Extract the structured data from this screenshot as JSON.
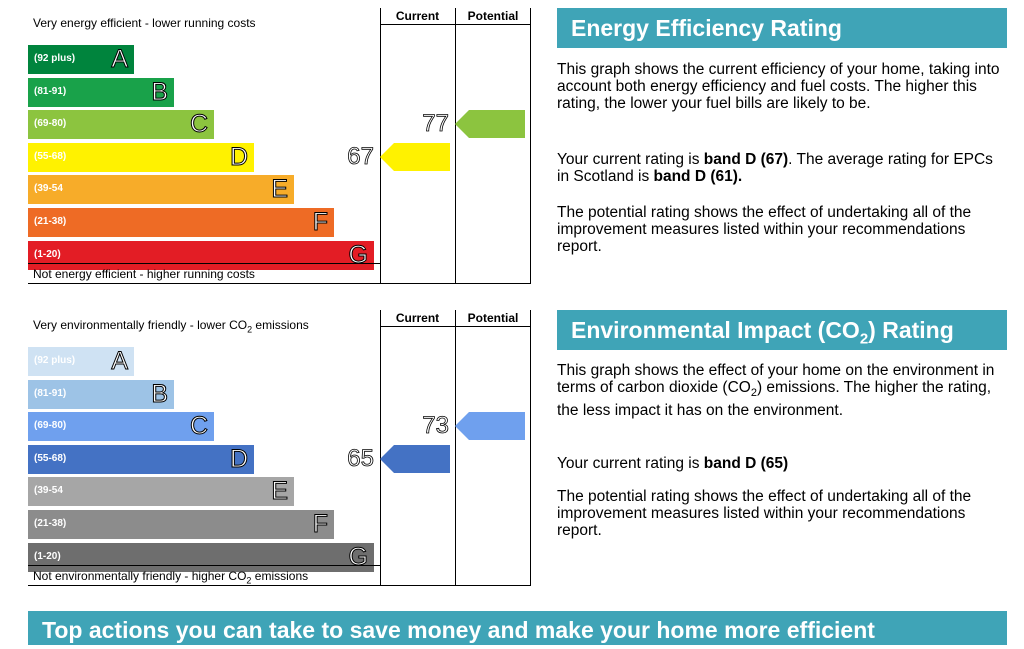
{
  "energy_chart": {
    "header_current": "Current",
    "header_potential": "Potential",
    "top_caption": "Very energy efficient - lower running costs",
    "bottom_caption": "Not energy efficient - higher running costs",
    "bands": [
      {
        "range": "(92 plus)",
        "letter": "A",
        "color": "#00843d"
      },
      {
        "range": "(81-91)",
        "letter": "B",
        "color": "#19a24a"
      },
      {
        "range": "(69-80)",
        "letter": "C",
        "color": "#8cc43f"
      },
      {
        "range": "(55-68)",
        "letter": "D",
        "color": "#fff200"
      },
      {
        "range": "(39-54",
        "letter": "E",
        "color": "#f7ac29"
      },
      {
        "range": "(21-38)",
        "letter": "F",
        "color": "#ee6b25"
      },
      {
        "range": "(1-20)",
        "letter": "G",
        "color": "#e31d25"
      }
    ],
    "current": {
      "value": "67",
      "color": "#fff200"
    },
    "potential": {
      "value": "77",
      "color": "#8cc43f"
    }
  },
  "co2_chart": {
    "header_current": "Current",
    "header_potential": "Potential",
    "top_caption": "Very environmentally friendly - lower CO",
    "top_caption_sub": "2",
    "top_caption_end": " emissions",
    "bottom_caption": "Not environmentally friendly - higher CO",
    "bottom_caption_sub": "2",
    "bottom_caption_end": " emissions",
    "bands": [
      {
        "range": "(92 plus)",
        "letter": "A",
        "color": "#cfe2f3"
      },
      {
        "range": "(81-91)",
        "letter": "B",
        "color": "#9dc3e6"
      },
      {
        "range": "(69-80)",
        "letter": "C",
        "color": "#6fa0ee"
      },
      {
        "range": "(55-68)",
        "letter": "D",
        "color": "#4472c4"
      },
      {
        "range": "(39-54",
        "letter": "E",
        "color": "#a6a6a6"
      },
      {
        "range": "(21-38)",
        "letter": "F",
        "color": "#8c8c8c"
      },
      {
        "range": "(1-20)",
        "letter": "G",
        "color": "#6e6e6e"
      }
    ],
    "current": {
      "value": "65",
      "color": "#4472c4"
    },
    "potential": {
      "value": "73",
      "color": "#6fa0ee"
    }
  },
  "energy_panel": {
    "title": "Energy Efficiency Rating",
    "para1": "This graph shows the current efficiency of your home, taking into account both energy efficiency and fuel costs. The higher this rating, the lower your fuel bills are likely to be.",
    "para2_a": "Your current rating is ",
    "para2_b": "band D (67)",
    "para2_c": ". The average rating for EPCs in Scotland is ",
    "para2_d": "band D (61).",
    "para3": "The potential rating shows the effect of undertaking all of the improvement measures listed within your recommendations report."
  },
  "co2_panel": {
    "title_a": "Environmental Impact (CO",
    "title_sub": "2",
    "title_b": ") Rating",
    "para1_a": "This graph shows the effect of your home on the environment in terms of carbon dioxide (CO",
    "para1_sub": "2",
    "para1_b": ") emissions. The higher the rating, the less impact it has on the environment.",
    "para2_a": "Your current rating is ",
    "para2_b": "band D (65)",
    "para3": "The potential rating shows the effect of undertaking all of the improvement measures listed within your recommendations report."
  },
  "footer": {
    "title": "Top actions you can take to save money and make your home more efficient"
  },
  "colors": {
    "accent": "#3fa4b7"
  }
}
